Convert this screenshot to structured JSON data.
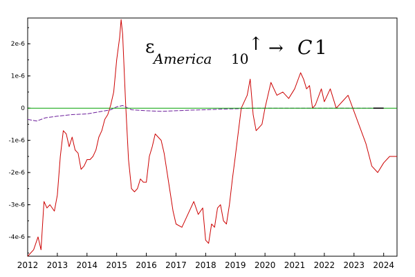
{
  "chart_data": {
    "type": "line",
    "title": {
      "epsilon": "ε",
      "sub_text": "America",
      "sub_num": "10",
      "up_arrow": "↑",
      "right_arrow": "→",
      "c_letter": "C",
      "c_number": "1"
    },
    "xlim": [
      2012,
      2024.45
    ],
    "ylim": [
      -4.6e-06,
      2.8e-06
    ],
    "x_ticks": [
      "2012",
      "2013",
      "2014",
      "2015",
      "2016",
      "2017",
      "2018",
      "2019",
      "2020",
      "2021",
      "2022",
      "2023",
      "2024"
    ],
    "y_ticks": [
      {
        "value": 2e-06,
        "label": "2e-6"
      },
      {
        "value": 1e-06,
        "label": "1e-6"
      },
      {
        "value": 0,
        "label": "0"
      },
      {
        "value": -1e-06,
        "label": "-1e-6"
      },
      {
        "value": -2e-06,
        "label": "-2e-6"
      },
      {
        "value": -3e-06,
        "label": "-3e-6"
      },
      {
        "value": -4e-06,
        "label": "-4e-6"
      }
    ],
    "series": [
      {
        "color": "#cc0000",
        "style": "solid",
        "x": [
          2012.0,
          2012.2,
          2012.35,
          2012.45,
          2012.55,
          2012.65,
          2012.75,
          2012.9,
          2013.0,
          2013.1,
          2013.2,
          2013.3,
          2013.4,
          2013.5,
          2013.6,
          2013.7,
          2013.8,
          2013.9,
          2014.0,
          2014.1,
          2014.2,
          2014.3,
          2014.4,
          2014.5,
          2014.6,
          2014.7,
          2014.8,
          2014.9,
          2015.0,
          2015.1,
          2015.15,
          2015.2,
          2015.3,
          2015.4,
          2015.5,
          2015.6,
          2015.7,
          2015.8,
          2015.9,
          2016.0,
          2016.1,
          2016.2,
          2016.3,
          2016.4,
          2016.5,
          2016.6,
          2016.7,
          2016.8,
          2016.9,
          2017.0,
          2017.2,
          2017.4,
          2017.6,
          2017.75,
          2017.9,
          2018.0,
          2018.1,
          2018.2,
          2018.3,
          2018.4,
          2018.5,
          2018.6,
          2018.7,
          2018.8,
          2018.9,
          2019.0,
          2019.2,
          2019.4,
          2019.5,
          2019.6,
          2019.7,
          2019.8,
          2019.9,
          2020.0,
          2020.2,
          2020.4,
          2020.6,
          2020.8,
          2021.0,
          2021.2,
          2021.3,
          2021.4,
          2021.5,
          2021.6,
          2021.7,
          2021.9,
          2022.0,
          2022.2,
          2022.4,
          2022.6,
          2022.8,
          2023.0,
          2023.2,
          2023.4,
          2023.6,
          2023.8,
          2024.0,
          2024.2,
          2024.35,
          2024.45
        ],
        "y": [
          -4.6e-06,
          -4.4e-06,
          -4e-06,
          -4.4e-06,
          -2.9e-06,
          -3.1e-06,
          -3e-06,
          -3.2e-06,
          -2.7e-06,
          -1.5e-06,
          -7e-07,
          -8e-07,
          -1.2e-06,
          -9e-07,
          -1.3e-06,
          -1.4e-06,
          -1.9e-06,
          -1.8e-06,
          -1.6e-06,
          -1.6e-06,
          -1.5e-06,
          -1.3e-06,
          -9e-07,
          -7e-07,
          -3.5e-07,
          -2e-07,
          1e-07,
          5e-07,
          1.5e-06,
          2.2e-06,
          2.75e-06,
          2.3e-06,
          2e-07,
          -1.6e-06,
          -2.5e-06,
          -2.6e-06,
          -2.5e-06,
          -2.2e-06,
          -2.3e-06,
          -2.3e-06,
          -1.5e-06,
          -1.2e-06,
          -8e-07,
          -9e-07,
          -1e-06,
          -1.4e-06,
          -2e-06,
          -2.6e-06,
          -3.2e-06,
          -3.6e-06,
          -3.7e-06,
          -3.3e-06,
          -2.9e-06,
          -3.3e-06,
          -3.1e-06,
          -4.1e-06,
          -4.2e-06,
          -3.6e-06,
          -3.7e-06,
          -3.1e-06,
          -3e-06,
          -3.5e-06,
          -3.6e-06,
          -3e-06,
          -2.2e-06,
          -1.5e-06,
          0.0,
          4e-07,
          9e-07,
          -2e-07,
          -7e-07,
          -6e-07,
          -5e-07,
          0.0,
          8e-07,
          4e-07,
          5e-07,
          3e-07,
          6e-07,
          1.1e-06,
          9e-07,
          6e-07,
          7e-07,
          0.0,
          1e-07,
          6e-07,
          2e-07,
          6e-07,
          0.0,
          2e-07,
          4e-07,
          -1e-07,
          -6e-07,
          -1.1e-06,
          -1.8e-06,
          -2e-06,
          -1.7e-06,
          -1.5e-06,
          -1.5e-06,
          -1.5e-06
        ]
      },
      {
        "color": "#6a1b9a",
        "style": "dashed",
        "x": [
          2012.0,
          2012.3,
          2012.6,
          2013.0,
          2013.5,
          2014.0,
          2014.5,
          2014.8,
          2015.0,
          2015.2,
          2015.5,
          2016.0,
          2016.5,
          2017.0,
          2017.5,
          2018.0,
          2018.5,
          2019.0,
          2019.5,
          2020.0,
          2021.0,
          2022.0,
          2023.0,
          2023.6,
          2024.0
        ],
        "y": [
          -3.5e-07,
          -4e-07,
          -3e-07,
          -2.5e-07,
          -2e-07,
          -1.8e-07,
          -1e-07,
          -5e-08,
          4e-08,
          8e-08,
          -5e-08,
          -8e-08,
          -1e-07,
          -8e-08,
          -6e-08,
          -5e-08,
          -3e-08,
          -2e-08,
          0.0,
          0.0,
          0.0,
          0.0,
          0.0,
          0.0,
          0.0
        ]
      },
      {
        "color": "#00a000",
        "style": "solid",
        "x": [
          2012.0,
          2024.45
        ],
        "y": [
          0.0,
          0.0
        ]
      },
      {
        "color": "#000000",
        "style": "solid",
        "x": [
          2023.65,
          2024.0
        ],
        "y": [
          0.0,
          0.0
        ]
      }
    ]
  }
}
